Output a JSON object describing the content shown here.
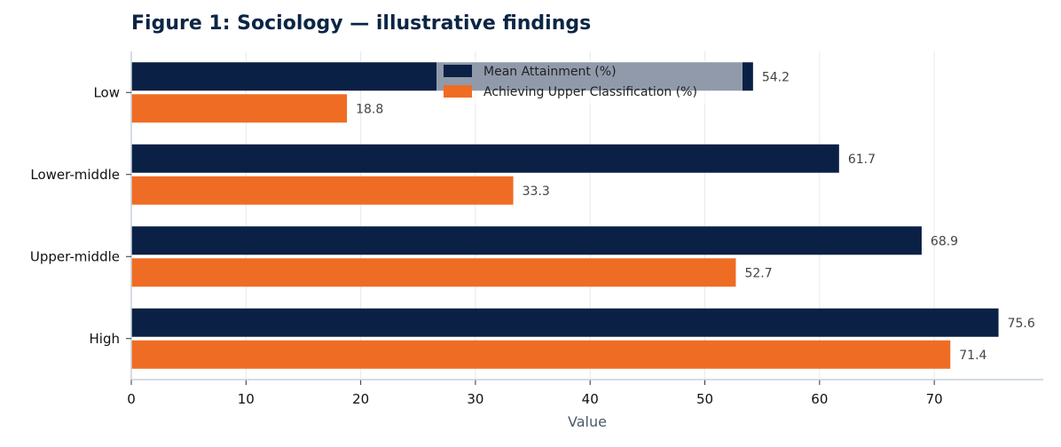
{
  "chart_data": {
    "type": "bar",
    "orientation": "horizontal",
    "title": "Figure 1: Sociology — illustrative findings",
    "xlabel": "Value",
    "ylabel": "",
    "categories": [
      "Low",
      "Lower-middle",
      "Upper-middle",
      "High"
    ],
    "series": [
      {
        "name": "Mean Attainment (%)",
        "values": [
          54.2,
          61.7,
          68.9,
          75.6
        ],
        "color": "#0b2045"
      },
      {
        "name": "Achieving Upper Classification (%)",
        "values": [
          18.8,
          33.3,
          52.7,
          71.4
        ],
        "color": "#ef6c24"
      }
    ],
    "xlim": [
      0,
      79.5
    ],
    "xticks": [
      0,
      10,
      20,
      30,
      40,
      50,
      60,
      70
    ],
    "grid": "vertical",
    "legend": "top-center"
  }
}
